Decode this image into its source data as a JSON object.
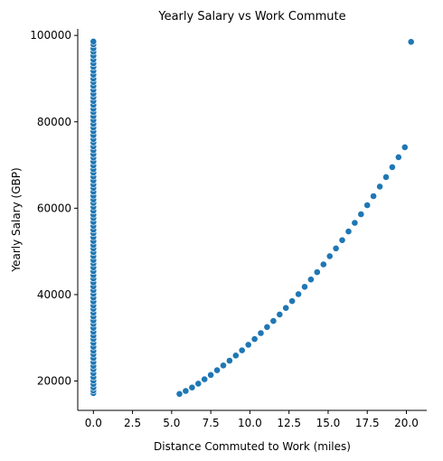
{
  "chart_data": {
    "type": "scatter",
    "title": "Yearly Salary vs Work Commute",
    "xlabel": "Distance Commuted to Work (miles)",
    "ylabel": "Yearly Salary (GBP)",
    "xlim": [
      -1.0,
      21.3
    ],
    "ylim": [
      13200,
      101500
    ],
    "xticks": [
      0,
      2.5,
      5,
      7.5,
      10,
      12.5,
      15,
      17.5,
      20
    ],
    "xtick_labels": [
      "0.0",
      "2.5",
      "5.0",
      "7.5",
      "10.0",
      "12.5",
      "15.0",
      "17.5",
      "20.0"
    ],
    "yticks": [
      20000,
      40000,
      60000,
      80000,
      100000
    ],
    "ytick_labels": [
      "20000",
      "40000",
      "60000",
      "80000",
      "100000"
    ],
    "grid": false,
    "point_color": "#1f77b4",
    "series": [
      {
        "points": [
          [
            0,
            17200
          ],
          [
            0,
            17800
          ],
          [
            0,
            18500
          ],
          [
            0,
            19300
          ],
          [
            0,
            20100
          ],
          [
            0,
            20900
          ],
          [
            0,
            21800
          ],
          [
            0,
            22700
          ],
          [
            0,
            23500
          ],
          [
            0,
            24400
          ],
          [
            0,
            25300
          ],
          [
            0,
            26200
          ],
          [
            0,
            27000
          ],
          [
            0,
            27900
          ],
          [
            0,
            28800
          ],
          [
            0,
            29700
          ],
          [
            0,
            30500
          ],
          [
            0,
            31400
          ],
          [
            0,
            32300
          ],
          [
            0,
            33200
          ],
          [
            0,
            34000
          ],
          [
            0,
            34900
          ],
          [
            0,
            35800
          ],
          [
            0,
            36700
          ],
          [
            0,
            37500
          ],
          [
            0,
            38400
          ],
          [
            0,
            39300
          ],
          [
            0,
            40200
          ],
          [
            0,
            41000
          ],
          [
            0,
            41900
          ],
          [
            0,
            42800
          ],
          [
            0,
            43700
          ],
          [
            0,
            44500
          ],
          [
            0,
            45400
          ],
          [
            0,
            46300
          ],
          [
            0,
            47200
          ],
          [
            0,
            48000
          ],
          [
            0,
            48900
          ],
          [
            0,
            49800
          ],
          [
            0,
            50700
          ],
          [
            0,
            51500
          ],
          [
            0,
            52400
          ],
          [
            0,
            53300
          ],
          [
            0,
            54200
          ],
          [
            0,
            55000
          ],
          [
            0,
            55900
          ],
          [
            0,
            56800
          ],
          [
            0,
            57700
          ],
          [
            0,
            58500
          ],
          [
            0,
            59400
          ],
          [
            0,
            60300
          ],
          [
            0,
            61200
          ],
          [
            0,
            62000
          ],
          [
            0,
            62900
          ],
          [
            0,
            63800
          ],
          [
            0,
            64700
          ],
          [
            0,
            65500
          ],
          [
            0,
            66400
          ],
          [
            0,
            67300
          ],
          [
            0,
            68200
          ],
          [
            0,
            69000
          ],
          [
            0,
            69900
          ],
          [
            0,
            70800
          ],
          [
            0,
            71700
          ],
          [
            0,
            72500
          ],
          [
            0,
            73400
          ],
          [
            0,
            74300
          ],
          [
            0,
            75200
          ],
          [
            0,
            76000
          ],
          [
            0,
            76900
          ],
          [
            0,
            77800
          ],
          [
            0,
            78700
          ],
          [
            0,
            79500
          ],
          [
            0,
            80400
          ],
          [
            0,
            81300
          ],
          [
            0,
            82200
          ],
          [
            0,
            83000
          ],
          [
            0,
            83900
          ],
          [
            0,
            84800
          ],
          [
            0,
            85700
          ],
          [
            0,
            86500
          ],
          [
            0,
            87400
          ],
          [
            0,
            88300
          ],
          [
            0,
            89200
          ],
          [
            0,
            90000
          ],
          [
            0,
            90900
          ],
          [
            0,
            91800
          ],
          [
            0,
            92700
          ],
          [
            0,
            93500
          ],
          [
            0,
            94400
          ],
          [
            0,
            95300
          ],
          [
            0,
            96200
          ],
          [
            0,
            97000
          ],
          [
            0,
            97900
          ],
          [
            0,
            98600
          ],
          [
            5.5,
            17000
          ],
          [
            5.9,
            17700
          ],
          [
            6.3,
            18500
          ],
          [
            6.7,
            19400
          ],
          [
            7.1,
            20400
          ],
          [
            7.5,
            21400
          ],
          [
            7.9,
            22500
          ],
          [
            8.3,
            23600
          ],
          [
            8.7,
            24700
          ],
          [
            9.1,
            25900
          ],
          [
            9.5,
            27100
          ],
          [
            9.9,
            28400
          ],
          [
            10.3,
            29700
          ],
          [
            10.7,
            31100
          ],
          [
            11.1,
            32500
          ],
          [
            11.5,
            33900
          ],
          [
            11.9,
            35400
          ],
          [
            12.3,
            36900
          ],
          [
            12.7,
            38500
          ],
          [
            13.1,
            40100
          ],
          [
            13.5,
            41800
          ],
          [
            13.9,
            43500
          ],
          [
            14.3,
            45200
          ],
          [
            14.7,
            47000
          ],
          [
            15.1,
            48900
          ],
          [
            15.5,
            50700
          ],
          [
            15.9,
            52600
          ],
          [
            16.3,
            54600
          ],
          [
            16.7,
            56600
          ],
          [
            17.1,
            58600
          ],
          [
            17.5,
            60700
          ],
          [
            17.9,
            62800
          ],
          [
            18.3,
            65000
          ],
          [
            18.7,
            67200
          ],
          [
            19.1,
            69500
          ],
          [
            19.5,
            71800
          ],
          [
            19.9,
            74100
          ],
          [
            20.3,
            98500
          ]
        ]
      }
    ]
  }
}
